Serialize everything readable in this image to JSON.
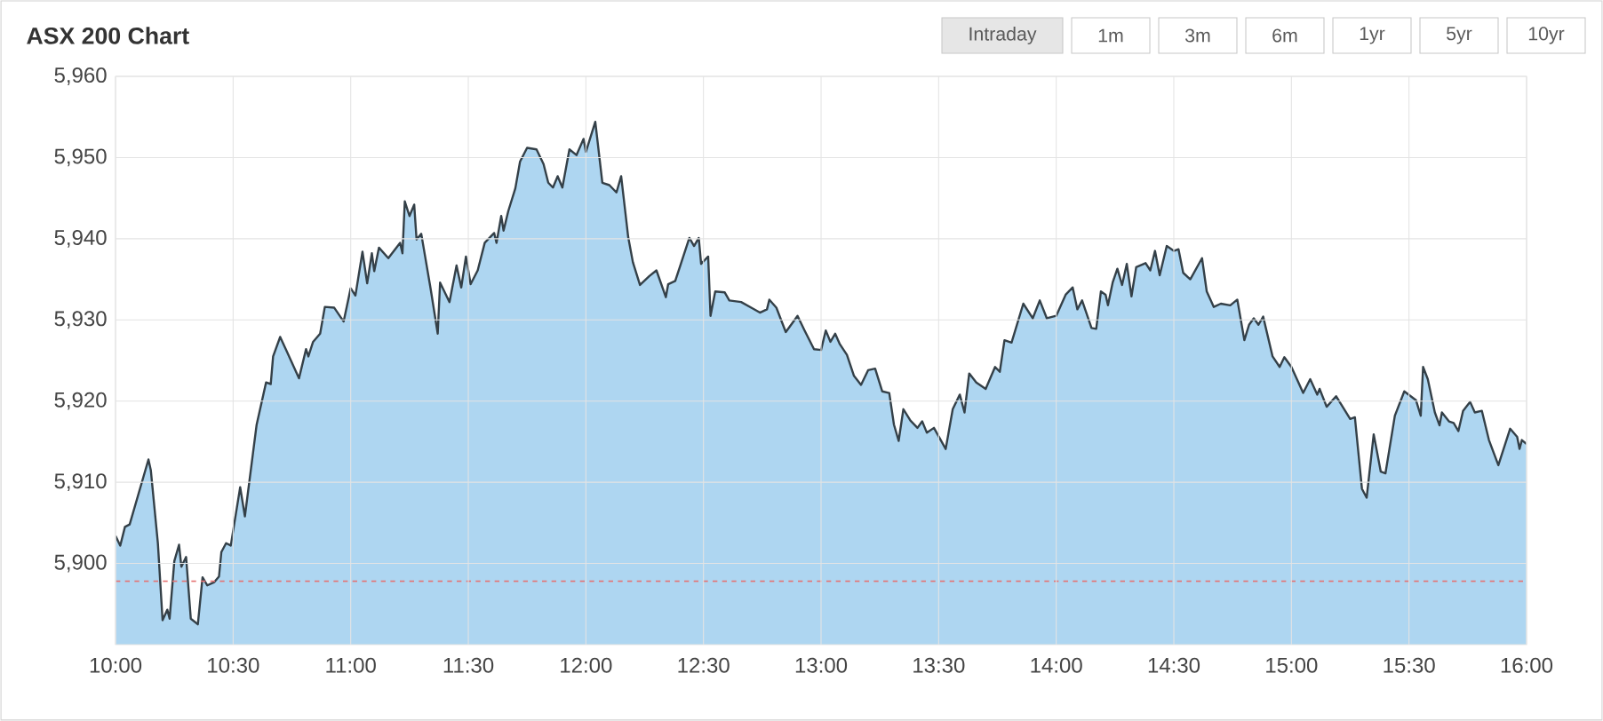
{
  "chart_data": {
    "type": "area",
    "title": "ASX 200 Chart",
    "annotations": [
      "Intraday",
      "1m",
      "3m",
      "6m",
      "1yr",
      "5yr",
      "10yr"
    ],
    "xlim": [
      10,
      16
    ],
    "ylim": [
      5890,
      5960
    ],
    "xticks": [
      {
        "value": 10,
        "label": "10:00"
      },
      {
        "value": 10.5,
        "label": "10:30"
      },
      {
        "value": 11,
        "label": "11:00"
      },
      {
        "value": 11.5,
        "label": "11:30"
      },
      {
        "value": 12,
        "label": "12:00"
      },
      {
        "value": 12.5,
        "label": "12:30"
      },
      {
        "value": 13,
        "label": "13:00"
      },
      {
        "value": 13.5,
        "label": "13:30"
      },
      {
        "value": 14,
        "label": "14:00"
      },
      {
        "value": 14.5,
        "label": "14:30"
      },
      {
        "value": 15,
        "label": "15:00"
      },
      {
        "value": 15.5,
        "label": "15:30"
      },
      {
        "value": 16,
        "label": "16:00"
      }
    ],
    "yticks": [
      {
        "value": 5900,
        "label": "5,900"
      },
      {
        "value": 5910,
        "label": "5,910"
      },
      {
        "value": 5920,
        "label": "5,920"
      },
      {
        "value": 5930,
        "label": "5,930"
      },
      {
        "value": 5940,
        "label": "5,940"
      },
      {
        "value": 5950,
        "label": "5,950"
      },
      {
        "value": 5960,
        "label": "5,960"
      }
    ],
    "grid": true,
    "ref_lines": [
      {
        "axis": "y",
        "value": 5897.8,
        "color": "#e57373",
        "line_style": "dashed"
      }
    ],
    "x": [
      10.0,
      10.02,
      10.04,
      10.06,
      10.14,
      10.15,
      10.18,
      10.2,
      10.22,
      10.23,
      10.25,
      10.27,
      10.28,
      10.3,
      10.32,
      10.35,
      10.37,
      10.39,
      10.42,
      10.44,
      10.45,
      10.47,
      10.49,
      10.53,
      10.55,
      10.6,
      10.64,
      10.66,
      10.67,
      10.7,
      10.73,
      10.78,
      10.81,
      10.82,
      10.84,
      10.87,
      10.89,
      10.93,
      10.97,
      11.0,
      11.02,
      11.05,
      11.07,
      11.09,
      11.1,
      11.12,
      11.16,
      11.21,
      11.22,
      11.23,
      11.25,
      11.27,
      11.28,
      11.3,
      11.34,
      11.37,
      11.38,
      11.42,
      11.45,
      11.47,
      11.49,
      11.51,
      11.54,
      11.57,
      11.61,
      11.62,
      11.64,
      11.65,
      11.67,
      11.7,
      11.72,
      11.75,
      11.79,
      11.82,
      11.84,
      11.86,
      11.88,
      11.9,
      11.93,
      11.96,
      11.99,
      12.0,
      12.04,
      12.07,
      12.1,
      12.13,
      12.15,
      12.18,
      12.2,
      12.23,
      12.27,
      12.3,
      12.34,
      12.35,
      12.38,
      12.44,
      12.46,
      12.48,
      12.49,
      12.52,
      12.53,
      12.55,
      12.59,
      12.61,
      12.66,
      12.71,
      12.74,
      12.77,
      12.78,
      12.81,
      12.85,
      12.9,
      12.93,
      12.97,
      13.0,
      13.02,
      13.04,
      13.06,
      13.08,
      13.11,
      13.14,
      13.17,
      13.2,
      13.23,
      13.26,
      13.29,
      13.31,
      13.33,
      13.35,
      13.38,
      13.41,
      13.43,
      13.45,
      13.48,
      13.53,
      13.56,
      13.59,
      13.61,
      13.63,
      13.66,
      13.7,
      13.74,
      13.76,
      13.78,
      13.81,
      13.86,
      13.9,
      13.93,
      13.96,
      14.0,
      14.04,
      14.07,
      14.09,
      14.11,
      14.15,
      14.17,
      14.19,
      14.21,
      14.22,
      14.24,
      14.26,
      14.28,
      14.3,
      14.32,
      14.34,
      14.38,
      14.4,
      14.42,
      14.44,
      14.47,
      14.5,
      14.52,
      14.54,
      14.57,
      14.62,
      14.64,
      14.67,
      14.7,
      14.74,
      14.77,
      14.8,
      14.82,
      14.84,
      14.86,
      14.88,
      14.92,
      14.95,
      14.97,
      15.0,
      15.05,
      15.08,
      15.11,
      15.12,
      15.15,
      15.19,
      15.25,
      15.27,
      15.3,
      15.32,
      15.35,
      15.38,
      15.4,
      15.44,
      15.48,
      15.53,
      15.55,
      15.56,
      15.58,
      15.61,
      15.63,
      15.64,
      15.67,
      15.69,
      15.71,
      15.73,
      15.76,
      15.78,
      15.81,
      15.84,
      15.88,
      15.93,
      15.96,
      15.97,
      15.98,
      16.0
    ],
    "series": [
      {
        "color": "#aed6f1",
        "values": [
          5903.4,
          5902.2,
          5904.5,
          5904.8,
          5912.8,
          5911.5,
          5902.5,
          5893.0,
          5894.3,
          5893.2,
          5900.3,
          5902.3,
          5899.6,
          5900.8,
          5893.2,
          5892.5,
          5898.3,
          5897.3,
          5897.7,
          5898.4,
          5901.4,
          5902.5,
          5902.2,
          5909.4,
          5905.8,
          5917.1,
          5922.3,
          5922.1,
          5925.5,
          5927.9,
          5926.0,
          5922.8,
          5926.4,
          5925.5,
          5927.3,
          5928.3,
          5931.6,
          5931.5,
          5929.8,
          5933.9,
          5933.0,
          5938.4,
          5934.5,
          5938.2,
          5936.0,
          5938.9,
          5937.6,
          5939.5,
          5938.2,
          5944.6,
          5942.8,
          5944.2,
          5939.9,
          5940.6,
          5933.8,
          5928.3,
          5934.6,
          5932.2,
          5936.7,
          5934.0,
          5937.8,
          5934.4,
          5936.1,
          5939.5,
          5940.7,
          5939.5,
          5942.8,
          5941.0,
          5943.4,
          5946.2,
          5949.5,
          5951.2,
          5951.0,
          5949.2,
          5946.9,
          5946.3,
          5947.7,
          5946.3,
          5951.0,
          5950.3,
          5952.3,
          5950.7,
          5954.4,
          5946.9,
          5946.6,
          5945.7,
          5947.7,
          5940.2,
          5937.1,
          5934.3,
          5935.4,
          5936.1,
          5932.8,
          5934.4,
          5934.8,
          5940.1,
          5939.1,
          5940.1,
          5936.9,
          5937.8,
          5930.5,
          5933.5,
          5933.4,
          5932.4,
          5932.2,
          5931.4,
          5930.9,
          5931.3,
          5932.5,
          5931.5,
          5928.5,
          5930.5,
          5928.7,
          5926.4,
          5926.3,
          5928.7,
          5927.3,
          5928.3,
          5927.0,
          5925.7,
          5923.1,
          5922.0,
          5923.8,
          5924.0,
          5921.2,
          5921.0,
          5917.1,
          5915.1,
          5919.0,
          5917.6,
          5916.7,
          5917.5,
          5916.1,
          5916.7,
          5914.1,
          5919.0,
          5920.8,
          5918.6,
          5923.4,
          5922.3,
          5921.5,
          5924.2,
          5923.6,
          5927.5,
          5927.2,
          5932.0,
          5930.2,
          5932.4,
          5930.2,
          5930.5,
          5933.1,
          5934.0,
          5931.3,
          5932.4,
          5929.0,
          5928.9,
          5933.5,
          5933.1,
          5931.8,
          5934.6,
          5936.3,
          5934.3,
          5936.9,
          5932.9,
          5936.5,
          5937.0,
          5936.1,
          5938.5,
          5935.5,
          5939.1,
          5938.5,
          5938.7,
          5935.8,
          5935.0,
          5937.6,
          5933.5,
          5931.6,
          5932.0,
          5931.8,
          5932.5,
          5927.5,
          5929.4,
          5930.2,
          5929.4,
          5930.4,
          5925.5,
          5924.2,
          5925.4,
          5924.2,
          5921.0,
          5922.7,
          5920.8,
          5921.5,
          5919.3,
          5920.6,
          5917.8,
          5918.0,
          5909.2,
          5908.1,
          5915.9,
          5911.3,
          5911.1,
          5918.2,
          5921.2,
          5920.1,
          5918.2,
          5924.2,
          5922.7,
          5918.6,
          5917.0,
          5918.6,
          5917.5,
          5917.3,
          5916.3,
          5918.8,
          5919.9,
          5918.6,
          5918.8,
          5915.2,
          5912.1,
          5916.6,
          5915.6,
          5914.1,
          5915.2,
          5914.7
        ]
      }
    ]
  }
}
